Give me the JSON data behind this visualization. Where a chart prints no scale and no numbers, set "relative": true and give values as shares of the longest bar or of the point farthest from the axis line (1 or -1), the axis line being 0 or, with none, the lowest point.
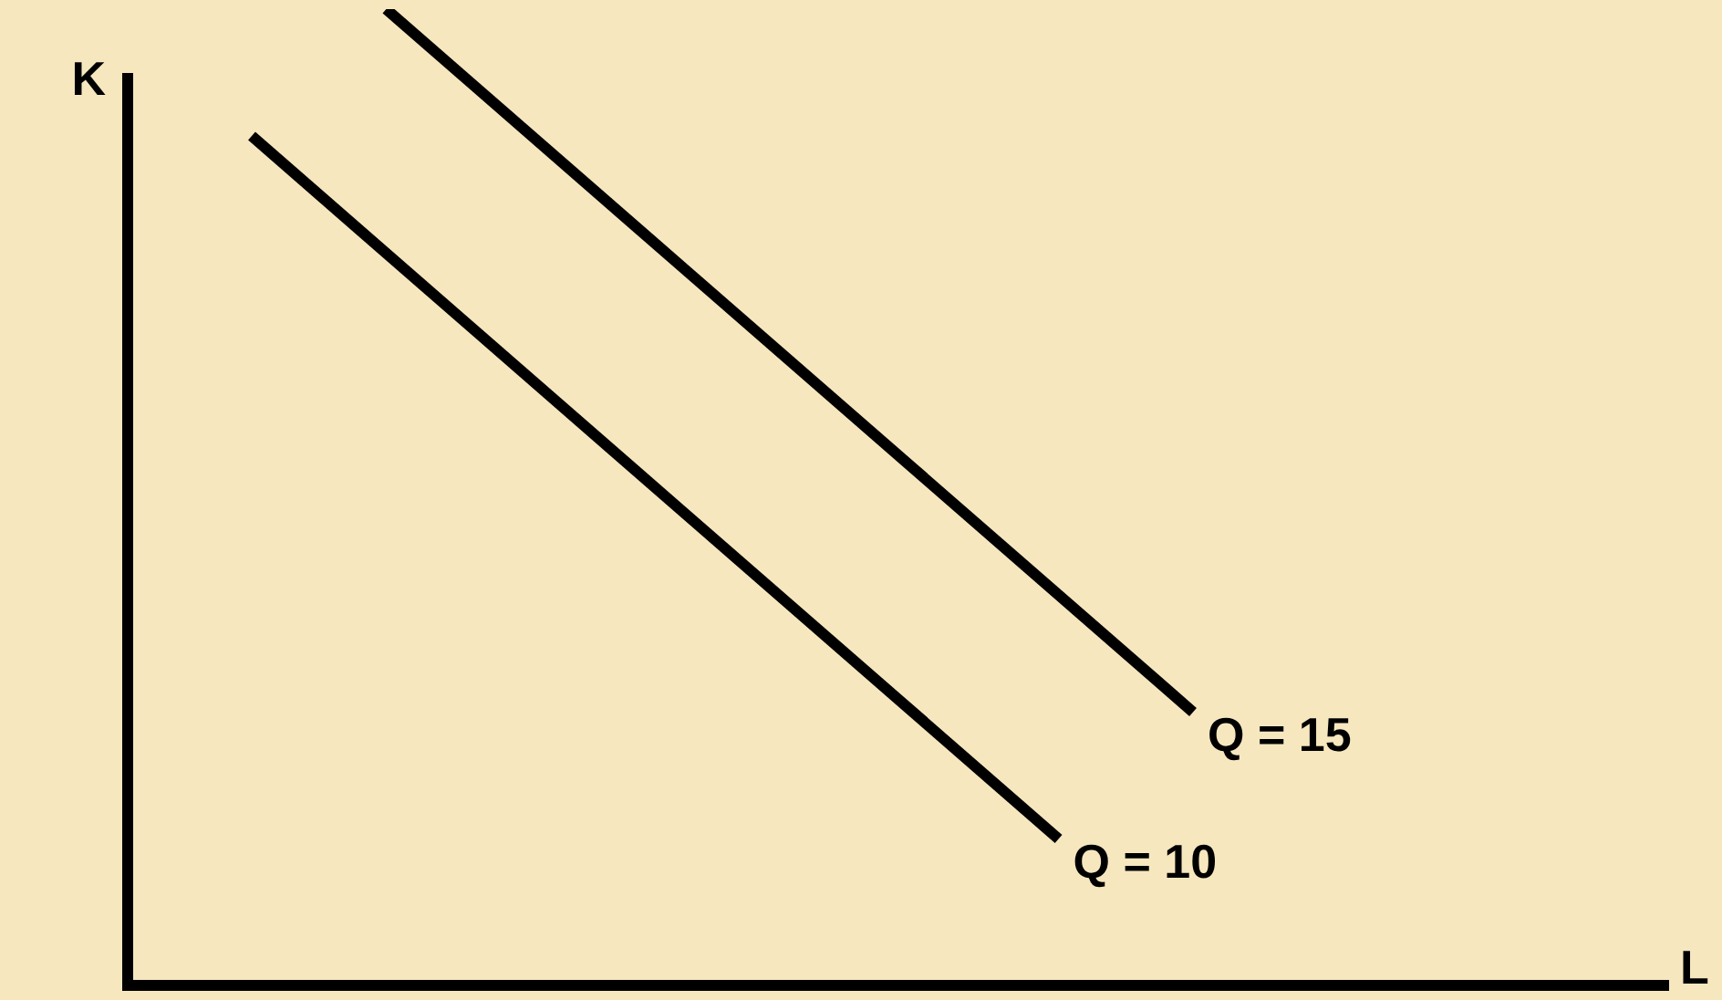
{
  "chart_data": {
    "type": "line",
    "relative": true,
    "annotations": [
      "L"
    ],
    "ylabel": "K",
    "legend": false,
    "marker": "none",
    "categories": [
      null,
      null,
      null,
      null,
      null,
      null,
      null,
      null
    ],
    "series": [
      {
        "name": "Q = 15",
        "color": "#000000",
        "values": [
          null,
          1,
          null,
          null,
          null,
          null,
          null,
          0.28
        ]
      },
      {
        "name": "Q = 10",
        "color": "#000000",
        "values": [
          0.87,
          null,
          null,
          null,
          null,
          null,
          0.15,
          null
        ]
      }
    ]
  }
}
